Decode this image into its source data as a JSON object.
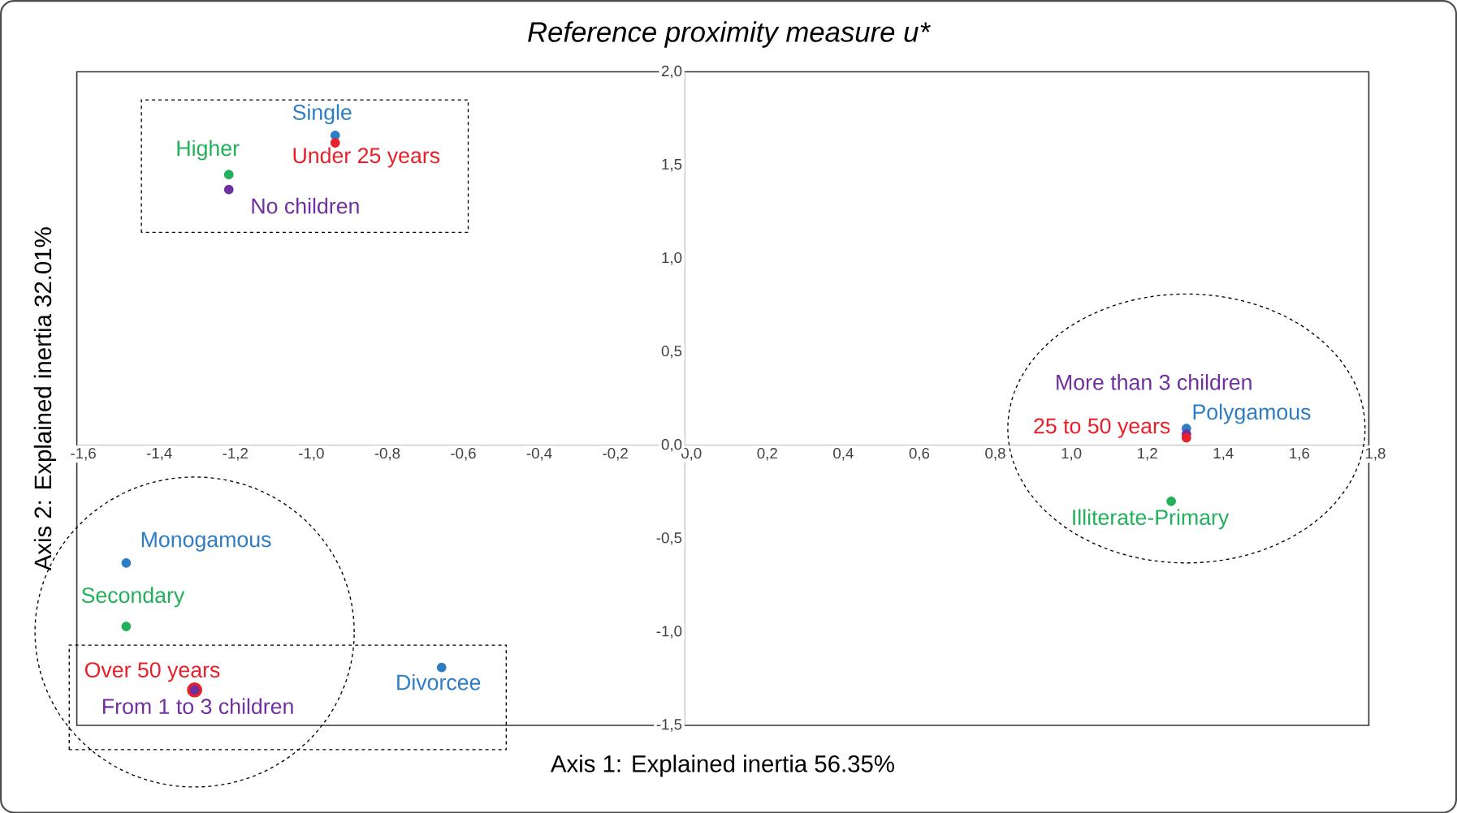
{
  "chart_data": {
    "type": "scatter",
    "title": "Reference proximity measure u*",
    "xlabel": "Axis 1: Explained inertia 56.35%",
    "ylabel": "Axis 2: Explained inertia 32.01%",
    "xlim": [
      -1.6,
      1.8
    ],
    "ylim": [
      -1.5,
      2.0
    ],
    "xticks": [
      {
        "value": -1.6,
        "label": "-1,6"
      },
      {
        "value": -1.4,
        "label": "-1,4"
      },
      {
        "value": -1.2,
        "label": "-1,2"
      },
      {
        "value": -1.0,
        "label": "-1,0"
      },
      {
        "value": -0.8,
        "label": "-0,8"
      },
      {
        "value": -0.6,
        "label": "-0,6"
      },
      {
        "value": -0.4,
        "label": "-0,4"
      },
      {
        "value": -0.2,
        "label": "-0,2"
      },
      {
        "value": 0,
        "label": "0,0"
      },
      {
        "value": 0.2,
        "label": "0,2"
      },
      {
        "value": 0.4,
        "label": "0,4"
      },
      {
        "value": 0.6,
        "label": "0,6"
      },
      {
        "value": 0.8,
        "label": "0,8"
      },
      {
        "value": 1.0,
        "label": "1,0"
      },
      {
        "value": 1.2,
        "label": "1,2"
      },
      {
        "value": 1.4,
        "label": "1,4"
      },
      {
        "value": 1.6,
        "label": "1,6"
      },
      {
        "value": 1.8,
        "label": "1,8"
      }
    ],
    "yticks": [
      {
        "value": -1.5,
        "label": "-1,5"
      },
      {
        "value": -1.0,
        "label": "-1,0"
      },
      {
        "value": -0.5,
        "label": "-0,5"
      },
      {
        "value": 0,
        "label": "0,0"
      },
      {
        "value": 0.5,
        "label": "0,5"
      },
      {
        "value": 1.0,
        "label": "1,0"
      },
      {
        "value": 1.5,
        "label": "1,5"
      },
      {
        "value": 2.0,
        "label": "2,0"
      }
    ],
    "grid": false,
    "legend": false,
    "series": [
      {
        "name": "Single",
        "color": "#2e7dc3",
        "x": [
          -0.92
        ],
        "values": [
          1.66
        ]
      },
      {
        "name": "Under 25 years",
        "color": "#e8202a",
        "x": [
          -0.92
        ],
        "values": [
          1.62
        ]
      },
      {
        "name": "Higher",
        "color": "#22b05a",
        "x": [
          -1.2
        ],
        "values": [
          1.45
        ]
      },
      {
        "name": "No children",
        "color": "#7030a0",
        "x": [
          -1.2
        ],
        "values": [
          1.37
        ]
      },
      {
        "name": "Polygamous",
        "color": "#2e7dc3",
        "x": [
          1.32
        ],
        "values": [
          0.09
        ]
      },
      {
        "name": "More than 3 children",
        "color": "#7030a0",
        "x": [
          1.32
        ],
        "values": [
          0.06
        ]
      },
      {
        "name": "25 to 50 years",
        "color": "#e8202a",
        "x": [
          1.32
        ],
        "values": [
          0.04
        ]
      },
      {
        "name": "Illiterate-Primary",
        "color": "#22b05a",
        "x": [
          1.28
        ],
        "values": [
          -0.3
        ]
      },
      {
        "name": "Monogamous",
        "color": "#2e7dc3",
        "x": [
          -1.47
        ],
        "values": [
          -0.63
        ]
      },
      {
        "name": "Secondary",
        "color": "#22b05a",
        "x": [
          -1.47
        ],
        "values": [
          -0.97
        ]
      },
      {
        "name": "Over 50 years",
        "color": "#e8202a",
        "x": [
          -1.29
        ],
        "values": [
          -1.31
        ]
      },
      {
        "name": "From 1 to 3 children",
        "color": "#7030a0",
        "x": [
          -1.29
        ],
        "values": [
          -1.31
        ]
      },
      {
        "name": "Divorcee",
        "color": "#2e7dc3",
        "x": [
          -0.64
        ],
        "values": [
          -1.19
        ]
      }
    ]
  }
}
